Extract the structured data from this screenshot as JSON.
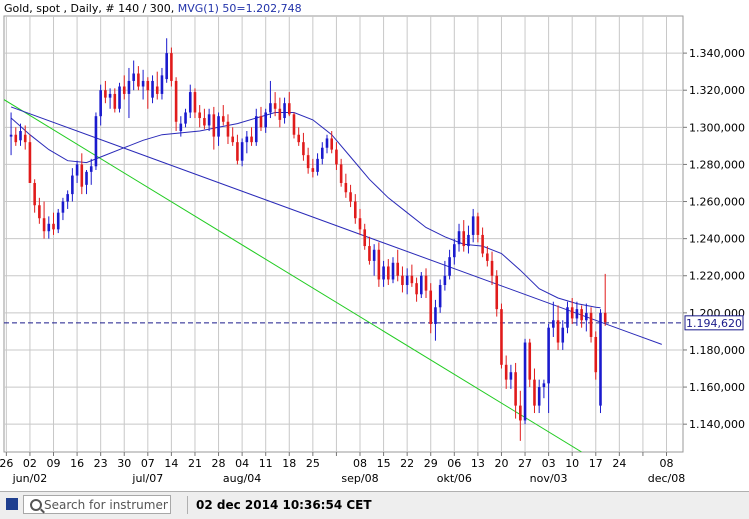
{
  "header": {
    "instrument": "Gold, spot , Daily, # 140 / 300,",
    "indicator": "MVG(1) 50=1.202,748"
  },
  "footer": {
    "search_placeholder": "Search for instrument",
    "timestamp": "02 dec 2014 10:36:54 CET"
  },
  "colors": {
    "up": "#1a1acd",
    "down": "#e01b1b",
    "grid": "#c8c8c8",
    "ma": "#2a2ab8",
    "trend_blue": "#2a2ab8",
    "trend_green": "#22cc22",
    "hline": "#1a1a8a"
  },
  "chart_data": {
    "type": "candlestick",
    "ylim": [
      1.125,
      1.36
    ],
    "yticks": [
      "1.140,000",
      "1.160,000",
      "1.180,000",
      "1.200,000",
      "1.220,000",
      "1.240,000",
      "1.260,000",
      "1.280,000",
      "1.300,000",
      "1.320,000",
      "1.340,000"
    ],
    "yticks_values": [
      1.14,
      1.16,
      1.18,
      1.2,
      1.22,
      1.24,
      1.26,
      1.28,
      1.3,
      1.32,
      1.34
    ],
    "x_day_labels": [
      "26",
      "02",
      "09",
      "16",
      "23",
      "30",
      "07",
      "14",
      "21",
      "28",
      "04",
      "11",
      "18",
      "25",
      "",
      "08",
      "15",
      "22",
      "29",
      "06",
      "13",
      "20",
      "27",
      "03",
      "10",
      "17",
      "24",
      "",
      "08",
      "15",
      "22"
    ],
    "x_month_labels": [
      "jun/02",
      "jul/07",
      "aug/04",
      "sep/08",
      "okt/06",
      "nov/03",
      "dec/08"
    ],
    "x_month_label_index": [
      1,
      6,
      10,
      15,
      19,
      23,
      28
    ],
    "current_price": 1.19462,
    "current_price_label": "1.194,620",
    "candles": [
      [
        1.295,
        1.308,
        1.285,
        1.296
      ],
      [
        1.296,
        1.3,
        1.29,
        1.292
      ],
      [
        1.293,
        1.302,
        1.29,
        1.298
      ],
      [
        1.296,
        1.301,
        1.288,
        1.292
      ],
      [
        1.292,
        1.296,
        1.27,
        1.27
      ],
      [
        1.27,
        1.272,
        1.254,
        1.258
      ],
      [
        1.258,
        1.262,
        1.248,
        1.251
      ],
      [
        1.251,
        1.26,
        1.24,
        1.244
      ],
      [
        1.244,
        1.252,
        1.24,
        1.248
      ],
      [
        1.248,
        1.254,
        1.242,
        1.245
      ],
      [
        1.245,
        1.256,
        1.243,
        1.254
      ],
      [
        1.254,
        1.262,
        1.25,
        1.26
      ],
      [
        1.26,
        1.266,
        1.256,
        1.264
      ],
      [
        1.264,
        1.278,
        1.26,
        1.274
      ],
      [
        1.274,
        1.282,
        1.27,
        1.28
      ],
      [
        1.28,
        1.286,
        1.264,
        1.268
      ],
      [
        1.269,
        1.277,
        1.264,
        1.276
      ],
      [
        1.276,
        1.283,
        1.269,
        1.279
      ],
      [
        1.279,
        1.308,
        1.277,
        1.306
      ],
      [
        1.306,
        1.323,
        1.301,
        1.32
      ],
      [
        1.32,
        1.325,
        1.313,
        1.316
      ],
      [
        1.316,
        1.321,
        1.31,
        1.318
      ],
      [
        1.318,
        1.321,
        1.308,
        1.31
      ],
      [
        1.31,
        1.324,
        1.308,
        1.322
      ],
      [
        1.322,
        1.328,
        1.315,
        1.318
      ],
      [
        1.318,
        1.332,
        1.305,
        1.325
      ],
      [
        1.325,
        1.336,
        1.32,
        1.329
      ],
      [
        1.329,
        1.333,
        1.32,
        1.322
      ],
      [
        1.322,
        1.331,
        1.315,
        1.325
      ],
      [
        1.325,
        1.327,
        1.31,
        1.32
      ],
      [
        1.316,
        1.328,
        1.313,
        1.325
      ],
      [
        1.322,
        1.33,
        1.315,
        1.318
      ],
      [
        1.318,
        1.332,
        1.315,
        1.328
      ],
      [
        1.326,
        1.348,
        1.324,
        1.34
      ],
      [
        1.34,
        1.343,
        1.322,
        1.325
      ],
      [
        1.325,
        1.327,
        1.298,
        1.303
      ],
      [
        1.298,
        1.306,
        1.295,
        1.302
      ],
      [
        1.302,
        1.31,
        1.3,
        1.308
      ],
      [
        1.308,
        1.323,
        1.305,
        1.319
      ],
      [
        1.319,
        1.321,
        1.305,
        1.308
      ],
      [
        1.308,
        1.312,
        1.3,
        1.305
      ],
      [
        1.305,
        1.31,
        1.299,
        1.301
      ],
      [
        1.301,
        1.31,
        1.298,
        1.307
      ],
      [
        1.307,
        1.311,
        1.288,
        1.295
      ],
      [
        1.295,
        1.308,
        1.29,
        1.306
      ],
      [
        1.306,
        1.312,
        1.301,
        1.303
      ],
      [
        1.303,
        1.307,
        1.291,
        1.295
      ],
      [
        1.295,
        1.3,
        1.29,
        1.292
      ],
      [
        1.292,
        1.296,
        1.28,
        1.282
      ],
      [
        1.282,
        1.294,
        1.279,
        1.292
      ],
      [
        1.292,
        1.298,
        1.286,
        1.295
      ],
      [
        1.295,
        1.3,
        1.29,
        1.292
      ],
      [
        1.292,
        1.31,
        1.29,
        1.306
      ],
      [
        1.306,
        1.311,
        1.298,
        1.3
      ],
      [
        1.3,
        1.31,
        1.297,
        1.308
      ],
      [
        1.308,
        1.325,
        1.305,
        1.313
      ],
      [
        1.313,
        1.319,
        1.306,
        1.31
      ],
      [
        1.31,
        1.316,
        1.3,
        1.304
      ],
      [
        1.305,
        1.316,
        1.302,
        1.313
      ],
      [
        1.313,
        1.319,
        1.306,
        1.307
      ],
      [
        1.307,
        1.308,
        1.294,
        1.296
      ],
      [
        1.296,
        1.3,
        1.29,
        1.292
      ],
      [
        1.292,
        1.297,
        1.282,
        1.285
      ],
      [
        1.285,
        1.289,
        1.275,
        1.278
      ],
      [
        1.278,
        1.283,
        1.273,
        1.276
      ],
      [
        1.276,
        1.286,
        1.274,
        1.283
      ],
      [
        1.283,
        1.292,
        1.28,
        1.289
      ],
      [
        1.289,
        1.296,
        1.286,
        1.294
      ],
      [
        1.294,
        1.298,
        1.286,
        1.288
      ],
      [
        1.288,
        1.292,
        1.277,
        1.28
      ],
      [
        1.28,
        1.283,
        1.268,
        1.27
      ],
      [
        1.27,
        1.275,
        1.262,
        1.265
      ],
      [
        1.265,
        1.269,
        1.257,
        1.26
      ],
      [
        1.26,
        1.264,
        1.248,
        1.251
      ],
      [
        1.251,
        1.256,
        1.242,
        1.245
      ],
      [
        1.245,
        1.248,
        1.234,
        1.236
      ],
      [
        1.236,
        1.241,
        1.226,
        1.228
      ],
      [
        1.228,
        1.237,
        1.22,
        1.234
      ],
      [
        1.234,
        1.238,
        1.214,
        1.218
      ],
      [
        1.218,
        1.228,
        1.214,
        1.225
      ],
      [
        1.225,
        1.229,
        1.215,
        1.218
      ],
      [
        1.218,
        1.23,
        1.216,
        1.227
      ],
      [
        1.227,
        1.234,
        1.217,
        1.22
      ],
      [
        1.22,
        1.225,
        1.211,
        1.215
      ],
      [
        1.215,
        1.224,
        1.21,
        1.22
      ],
      [
        1.22,
        1.226,
        1.214,
        1.216
      ],
      [
        1.216,
        1.219,
        1.206,
        1.21
      ],
      [
        1.21,
        1.222,
        1.208,
        1.22
      ],
      [
        1.22,
        1.224,
        1.208,
        1.212
      ],
      [
        1.212,
        1.216,
        1.189,
        1.194
      ],
      [
        1.194,
        1.207,
        1.185,
        1.203
      ],
      [
        1.203,
        1.218,
        1.2,
        1.215
      ],
      [
        1.215,
        1.228,
        1.212,
        1.22
      ],
      [
        1.22,
        1.234,
        1.218,
        1.23
      ],
      [
        1.23,
        1.24,
        1.226,
        1.237
      ],
      [
        1.237,
        1.248,
        1.233,
        1.244
      ],
      [
        1.244,
        1.25,
        1.233,
        1.236
      ],
      [
        1.236,
        1.247,
        1.232,
        1.242
      ],
      [
        1.242,
        1.256,
        1.238,
        1.252
      ],
      [
        1.252,
        1.254,
        1.238,
        1.242
      ],
      [
        1.242,
        1.246,
        1.23,
        1.232
      ],
      [
        1.232,
        1.236,
        1.225,
        1.228
      ],
      [
        1.228,
        1.233,
        1.215,
        1.22
      ],
      [
        1.22,
        1.223,
        1.198,
        1.202
      ],
      [
        1.202,
        1.205,
        1.17,
        1.172
      ],
      [
        1.172,
        1.177,
        1.159,
        1.164
      ],
      [
        1.164,
        1.172,
        1.159,
        1.168
      ],
      [
        1.168,
        1.173,
        1.143,
        1.15
      ],
      [
        1.15,
        1.158,
        1.131,
        1.142
      ],
      [
        1.142,
        1.186,
        1.14,
        1.184
      ],
      [
        1.184,
        1.186,
        1.16,
        1.164
      ],
      [
        1.164,
        1.17,
        1.146,
        1.15
      ],
      [
        1.15,
        1.164,
        1.146,
        1.16
      ],
      [
        1.16,
        1.164,
        1.154,
        1.162
      ],
      [
        1.162,
        1.194,
        1.146,
        1.192
      ],
      [
        1.192,
        1.206,
        1.187,
        1.196
      ],
      [
        1.196,
        1.204,
        1.18,
        1.184
      ],
      [
        1.184,
        1.196,
        1.18,
        1.192
      ],
      [
        1.192,
        1.206,
        1.189,
        1.203
      ],
      [
        1.203,
        1.208,
        1.194,
        1.197
      ],
      [
        1.197,
        1.206,
        1.193,
        1.202
      ],
      [
        1.202,
        1.204,
        1.192,
        1.196
      ],
      [
        1.196,
        1.205,
        1.19,
        1.2
      ],
      [
        1.2,
        1.203,
        1.184,
        1.187
      ],
      [
        1.187,
        1.19,
        1.164,
        1.168
      ],
      [
        1.15,
        1.202,
        1.146,
        1.2
      ],
      [
        1.2,
        1.221,
        1.193,
        1.195
      ]
    ],
    "ma_points": [
      [
        0,
        1.305
      ],
      [
        4,
        1.296
      ],
      [
        8,
        1.288
      ],
      [
        12,
        1.282
      ],
      [
        16,
        1.281
      ],
      [
        20,
        1.285
      ],
      [
        24,
        1.289
      ],
      [
        28,
        1.293
      ],
      [
        32,
        1.296
      ],
      [
        36,
        1.297
      ],
      [
        40,
        1.298
      ],
      [
        44,
        1.3
      ],
      [
        48,
        1.302
      ],
      [
        52,
        1.305
      ],
      [
        56,
        1.308
      ],
      [
        60,
        1.308
      ],
      [
        64,
        1.304
      ],
      [
        68,
        1.296
      ],
      [
        72,
        1.284
      ],
      [
        76,
        1.272
      ],
      [
        80,
        1.262
      ],
      [
        84,
        1.254
      ],
      [
        88,
        1.246
      ],
      [
        92,
        1.241
      ],
      [
        96,
        1.237
      ],
      [
        100,
        1.236
      ],
      [
        104,
        1.232
      ],
      [
        108,
        1.223
      ],
      [
        112,
        1.213
      ],
      [
        116,
        1.208
      ],
      [
        120,
        1.205
      ],
      [
        124,
        1.203
      ],
      [
        125,
        1.2028
      ]
    ],
    "trend_blue": [
      [
        0,
        1.311
      ],
      [
        138,
        1.183
      ]
    ],
    "trend_green": [
      [
        -8,
        1.325
      ],
      [
        121,
        1.125
      ]
    ]
  }
}
